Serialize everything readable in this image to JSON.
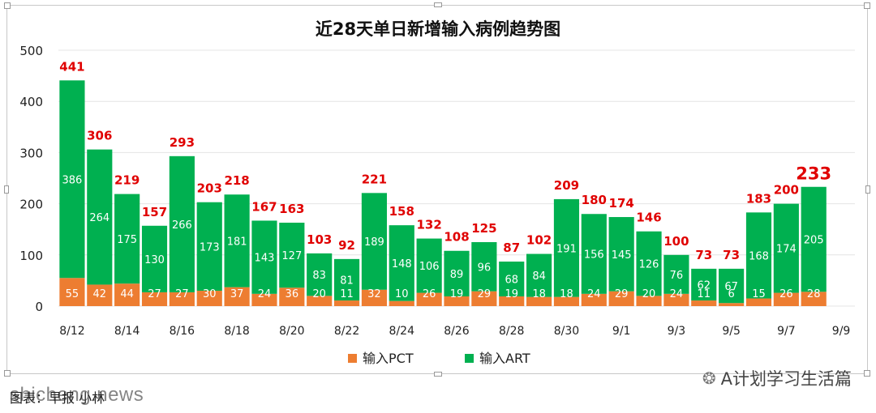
{
  "footer": {
    "source": "图表：早报 小林",
    "watermark": "shicheng.news",
    "brand": "A计划学习生活篇",
    "brand_icon": "wechat-icon"
  },
  "colors": {
    "pct": "#ED7D31",
    "art": "#00B050",
    "total_label": "#E00000",
    "grid": "#E4E4E4",
    "axis_text": "#222222"
  },
  "chart_data": {
    "type": "bar",
    "stacked": true,
    "title": "近28天单日新增输入病例趋势图",
    "xlabel": "",
    "ylabel": "",
    "ylim": [
      0,
      500
    ],
    "yticks": [
      0,
      100,
      200,
      300,
      400,
      500
    ],
    "grid": true,
    "legend_position": "bottom",
    "categories": [
      "8/12",
      "8/13",
      "8/14",
      "8/15",
      "8/16",
      "8/17",
      "8/18",
      "8/19",
      "8/20",
      "8/21",
      "8/22",
      "8/23",
      "8/24",
      "8/25",
      "8/26",
      "8/27",
      "8/28",
      "8/29",
      "8/30",
      "8/31",
      "9/1",
      "9/2",
      "9/3",
      "9/4",
      "9/5",
      "9/6",
      "9/7",
      "9/8",
      "9/9"
    ],
    "tick_labels": [
      "8/12",
      "8/14",
      "8/16",
      "8/18",
      "8/20",
      "8/22",
      "8/24",
      "8/26",
      "8/28",
      "8/30",
      "9/1",
      "9/3",
      "9/5",
      "9/7",
      "9/9"
    ],
    "series": [
      {
        "name": "输入PCT",
        "color": "#ED7D31",
        "values": [
          55,
          42,
          44,
          27,
          27,
          30,
          37,
          24,
          36,
          20,
          11,
          32,
          10,
          26,
          19,
          29,
          19,
          18,
          18,
          24,
          29,
          20,
          24,
          11,
          6,
          15,
          26,
          28,
          null
        ]
      },
      {
        "name": "输入ART",
        "color": "#00B050",
        "values": [
          386,
          264,
          175,
          130,
          266,
          173,
          181,
          143,
          127,
          83,
          81,
          189,
          148,
          106,
          89,
          96,
          68,
          84,
          191,
          156,
          145,
          126,
          76,
          62,
          67,
          168,
          174,
          205,
          null
        ]
      }
    ],
    "totals": [
      441,
      306,
      219,
      157,
      293,
      203,
      218,
      167,
      163,
      103,
      92,
      221,
      158,
      132,
      108,
      125,
      87,
      102,
      209,
      180,
      174,
      146,
      100,
      73,
      73,
      183,
      200,
      233,
      null
    ],
    "highlight_index": 27
  }
}
